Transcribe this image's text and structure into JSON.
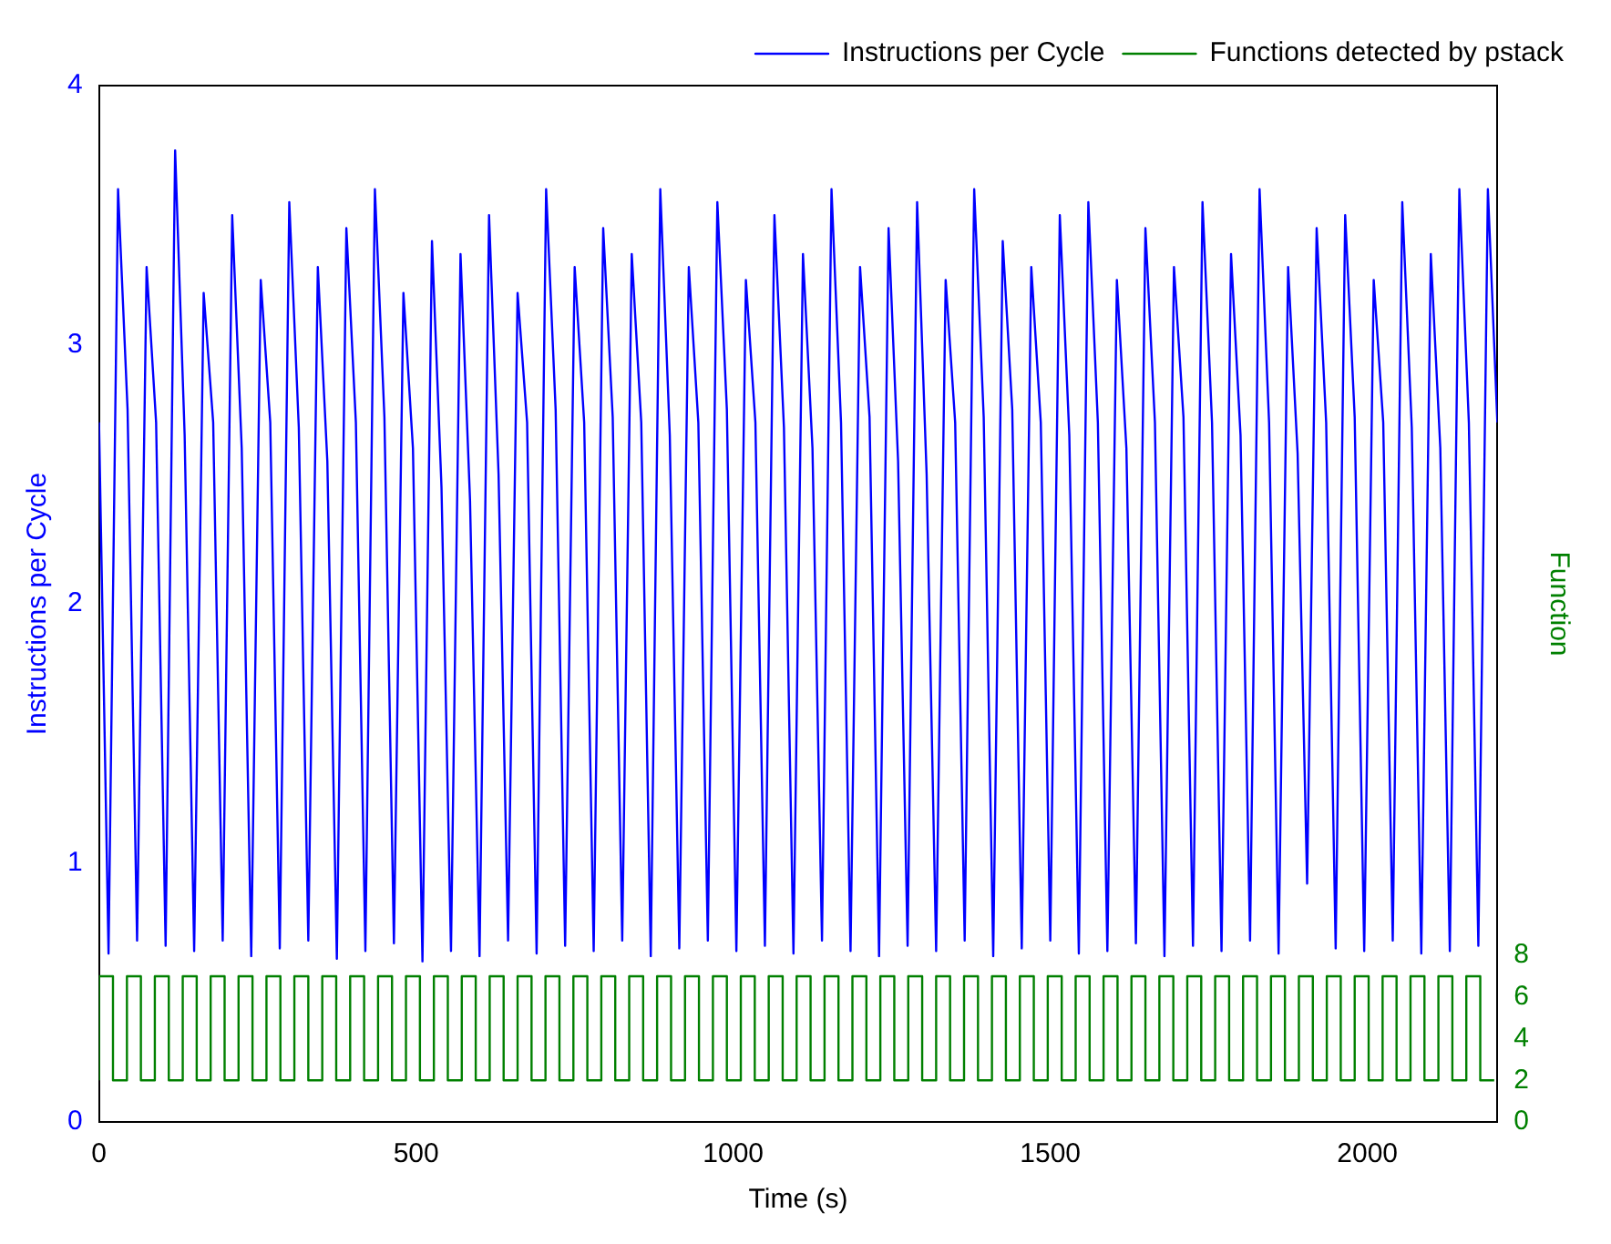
{
  "chart_data": {
    "type": "line",
    "xlabel": "Time (s)",
    "ylabel": "Instructions per Cycle",
    "y2label": "Function",
    "xlim": [
      0,
      2205
    ],
    "xticks": [
      0,
      500,
      1000,
      1500,
      2000
    ],
    "ylim": [
      0,
      4
    ],
    "yticks": [
      0,
      1,
      2,
      3,
      4
    ],
    "y2lim": [
      0,
      49.8
    ],
    "y2ticks": [
      0,
      2,
      4,
      6,
      8
    ],
    "legend": "top right",
    "marker": "none",
    "line_style": "solid",
    "series": [
      {
        "name": "Instructions per Cycle",
        "color": "#0000ff",
        "axis": "y",
        "x": [
          0,
          15,
          30,
          45,
          60,
          75,
          90,
          105,
          120,
          135,
          150,
          165,
          180,
          195,
          210,
          225,
          240,
          255,
          270,
          285,
          300,
          315,
          330,
          345,
          360,
          375,
          390,
          405,
          420,
          435,
          450,
          465,
          480,
          495,
          510,
          525,
          540,
          555,
          570,
          585,
          600,
          615,
          630,
          645,
          660,
          675,
          690,
          705,
          720,
          735,
          750,
          765,
          780,
          795,
          810,
          825,
          840,
          855,
          870,
          885,
          900,
          915,
          930,
          945,
          960,
          975,
          990,
          1005,
          1020,
          1035,
          1050,
          1065,
          1080,
          1095,
          1110,
          1125,
          1140,
          1155,
          1170,
          1185,
          1200,
          1215,
          1230,
          1245,
          1260,
          1275,
          1290,
          1305,
          1320,
          1335,
          1350,
          1365,
          1380,
          1395,
          1410,
          1425,
          1440,
          1455,
          1470,
          1485,
          1500,
          1515,
          1530,
          1545,
          1560,
          1575,
          1590,
          1605,
          1620,
          1635,
          1650,
          1665,
          1680,
          1695,
          1710,
          1725,
          1740,
          1755,
          1770,
          1785,
          1800,
          1815,
          1830,
          1845,
          1860,
          1875,
          1890,
          1905,
          1920,
          1935,
          1950,
          1965,
          1980,
          1995,
          2010,
          2025,
          2040,
          2055,
          2070,
          2085,
          2100,
          2115,
          2130,
          2145,
          2160,
          2175,
          2190,
          2205
        ],
        "values": [
          2.7,
          0.65,
          3.6,
          2.75,
          0.7,
          3.3,
          2.7,
          0.68,
          3.75,
          2.65,
          0.66,
          3.2,
          2.7,
          0.7,
          3.5,
          2.6,
          0.64,
          3.25,
          2.7,
          0.67,
          3.55,
          2.68,
          0.7,
          3.3,
          2.55,
          0.63,
          3.45,
          2.7,
          0.66,
          3.6,
          2.72,
          0.69,
          3.2,
          2.6,
          0.62,
          3.4,
          2.45,
          0.66,
          3.35,
          2.4,
          0.64,
          3.5,
          2.5,
          0.7,
          3.2,
          2.7,
          0.65,
          3.6,
          2.75,
          0.68,
          3.3,
          2.7,
          0.66,
          3.45,
          2.72,
          0.7,
          3.35,
          2.7,
          0.64,
          3.6,
          2.65,
          0.67,
          3.3,
          2.7,
          0.7,
          3.55,
          2.75,
          0.66,
          3.25,
          2.7,
          0.68,
          3.5,
          2.68,
          0.65,
          3.35,
          2.6,
          0.7,
          3.6,
          2.7,
          0.66,
          3.3,
          2.72,
          0.64,
          3.45,
          2.55,
          0.68,
          3.55,
          2.5,
          0.66,
          3.25,
          2.7,
          0.7,
          3.6,
          2.72,
          0.64,
          3.4,
          2.75,
          0.67,
          3.3,
          2.7,
          0.7,
          3.5,
          2.65,
          0.65,
          3.55,
          2.7,
          0.66,
          3.25,
          2.6,
          0.69,
          3.45,
          2.7,
          0.64,
          3.3,
          2.72,
          0.68,
          3.55,
          2.7,
          0.66,
          3.35,
          2.65,
          0.7,
          3.6,
          2.7,
          0.65,
          3.3,
          2.58,
          0.92,
          3.45,
          2.7,
          0.67,
          3.5,
          2.72,
          0.66,
          3.25,
          2.7,
          0.7,
          3.55,
          2.68,
          0.65,
          3.35,
          2.6,
          0.66,
          3.6,
          2.7,
          0.68,
          3.6,
          2.7
        ]
      },
      {
        "name": "Functions detected by pstack",
        "color": "#008000",
        "type": "step",
        "axis": "y2",
        "x": [
          0,
          22,
          44,
          66,
          88,
          110,
          132,
          154,
          176,
          198,
          220,
          242,
          264,
          286,
          308,
          330,
          352,
          374,
          396,
          418,
          440,
          462,
          484,
          506,
          528,
          550,
          572,
          594,
          616,
          638,
          660,
          682,
          704,
          726,
          748,
          770,
          792,
          814,
          836,
          858,
          880,
          902,
          924,
          946,
          968,
          990,
          1012,
          1034,
          1056,
          1078,
          1100,
          1122,
          1144,
          1166,
          1188,
          1210,
          1232,
          1254,
          1276,
          1298,
          1320,
          1342,
          1364,
          1386,
          1408,
          1430,
          1452,
          1474,
          1496,
          1518,
          1540,
          1562,
          1584,
          1606,
          1628,
          1650,
          1672,
          1694,
          1716,
          1738,
          1760,
          1782,
          1804,
          1826,
          1848,
          1870,
          1892,
          1914,
          1936,
          1958,
          1980,
          2002,
          2024,
          2046,
          2068,
          2090,
          2112,
          2134,
          2156,
          2178,
          2200
        ],
        "values": [
          2,
          7,
          2,
          7,
          2,
          7,
          2,
          7,
          2,
          7,
          2,
          7,
          2,
          7,
          2,
          7,
          2,
          7,
          2,
          7,
          2,
          7,
          2,
          7,
          2,
          7,
          2,
          7,
          2,
          7,
          2,
          7,
          2,
          7,
          2,
          7,
          2,
          7,
          2,
          7,
          2,
          7,
          2,
          7,
          2,
          7,
          2,
          7,
          2,
          7,
          2,
          7,
          2,
          7,
          2,
          7,
          2,
          7,
          2,
          7,
          2,
          7,
          2,
          7,
          2,
          7,
          2,
          7,
          2,
          7,
          2,
          7,
          2,
          7,
          2,
          7,
          2,
          7,
          2,
          7,
          2,
          7,
          2,
          7,
          2,
          7,
          2,
          7,
          2,
          7,
          2,
          7,
          2,
          7,
          2,
          7,
          2,
          7,
          2,
          7,
          2
        ]
      }
    ]
  }
}
